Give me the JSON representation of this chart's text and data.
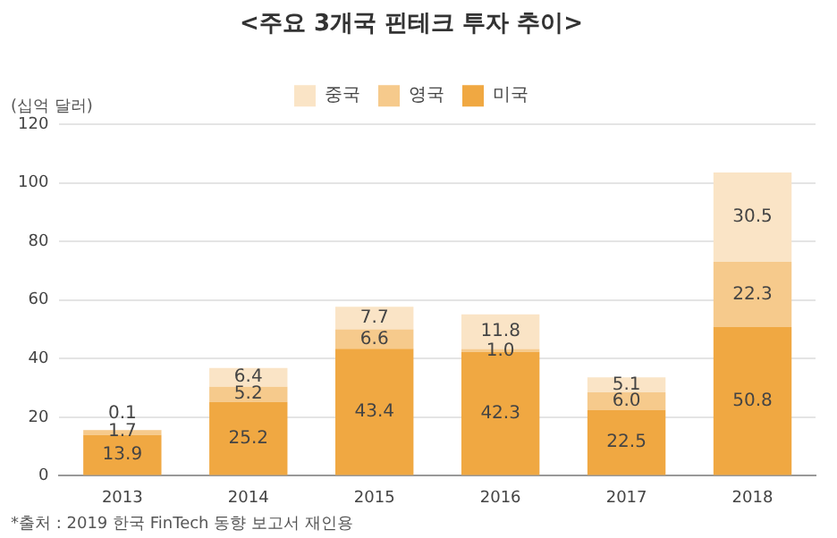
{
  "chart_data": {
    "type": "bar",
    "title": "<주요 3개국 핀테크 투자 추이>",
    "ylabel": "(십억 달러)",
    "categories": [
      "2013",
      "2014",
      "2015",
      "2016",
      "2017",
      "2018"
    ],
    "stacked": true,
    "data_labels": false,
    "ylim": [
      0,
      120
    ],
    "yticks": [
      0,
      20,
      40,
      60,
      80,
      100,
      120
    ],
    "grid": "y",
    "legend": "top",
    "series": [
      {
        "name": "미국",
        "color": "#f0a842",
        "values": [
          13.9,
          25.2,
          43.4,
          42.3,
          22.5,
          50.8
        ],
        "value_labels": [
          "13.9",
          "25.2",
          "43.4",
          "42.3",
          "22.5",
          "50.8"
        ]
      },
      {
        "name": "영국",
        "color": "#f6ca8c",
        "values": [
          1.7,
          5.2,
          6.6,
          1.0,
          6.0,
          22.3
        ],
        "value_labels": [
          "1.7",
          "5.2",
          "6.6",
          "1.0",
          "6.0",
          "22.3"
        ]
      },
      {
        "name": "중국",
        "color": "#fae4c6",
        "values": [
          0.1,
          6.4,
          7.7,
          11.8,
          5.1,
          30.5
        ],
        "value_labels": [
          "0.1",
          "6.4",
          "7.7",
          "11.8",
          "5.1",
          "30.5"
        ]
      }
    ],
    "annotations": [
      "*출처 : 2019 한국 FinTech 동향 보고서 재인용"
    ]
  }
}
